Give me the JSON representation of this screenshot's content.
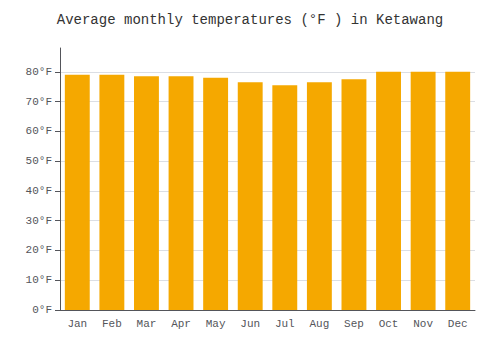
{
  "chart_data": {
    "type": "bar",
    "title": "Average monthly temperatures (°F ) in Ketawang",
    "categories": [
      "Jan",
      "Feb",
      "Mar",
      "Apr",
      "May",
      "Jun",
      "Jul",
      "Aug",
      "Sep",
      "Oct",
      "Nov",
      "Dec"
    ],
    "values": [
      79.0,
      79.0,
      78.5,
      78.5,
      78.0,
      76.5,
      75.5,
      76.5,
      77.5,
      80.0,
      80.0,
      80.0
    ],
    "color": "#F5A800",
    "ylim": [
      0,
      88
    ],
    "yticks": [
      {
        "value": 0,
        "label": "0°F"
      },
      {
        "value": 10,
        "label": "10°F"
      },
      {
        "value": 20,
        "label": "20°F"
      },
      {
        "value": 30,
        "label": "30°F"
      },
      {
        "value": 40,
        "label": "40°F"
      },
      {
        "value": 50,
        "label": "50°F"
      },
      {
        "value": 60,
        "label": "60°F"
      },
      {
        "value": 70,
        "label": "70°F"
      },
      {
        "value": 80,
        "label": "80°F"
      }
    ],
    "grid": true
  }
}
